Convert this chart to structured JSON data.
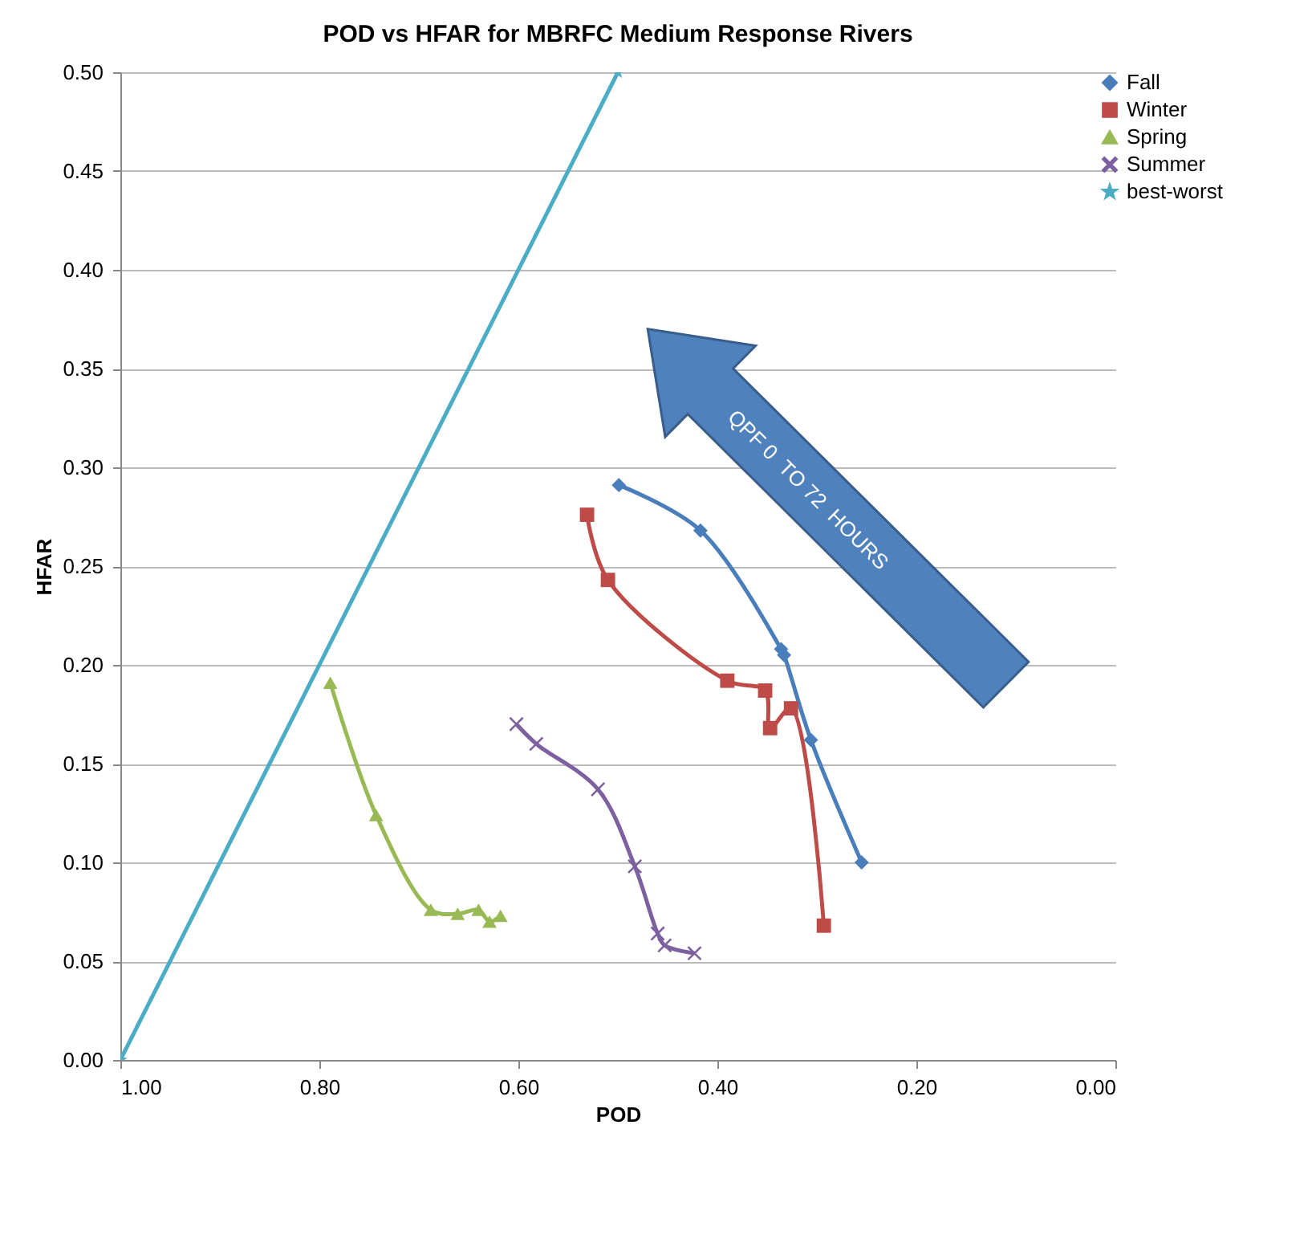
{
  "chart_data": {
    "type": "line",
    "title": "POD vs HFAR for MBRFC Medium Response Rivers",
    "xlabel": "POD",
    "ylabel": "HFAR",
    "xlim": [
      1.0,
      0.0
    ],
    "ylim": [
      0,
      0.5
    ],
    "xticks": [
      {
        "value": 1,
        "label": "1.00"
      },
      {
        "value": 0.8,
        "label": "0.80"
      },
      {
        "value": 0.6,
        "label": "0.60"
      },
      {
        "value": 0.4,
        "label": "0.40"
      },
      {
        "value": 0.2,
        "label": "0.20"
      },
      {
        "value": 0,
        "label": "0.00"
      }
    ],
    "yticks": [
      {
        "value": 0,
        "label": "0.00"
      },
      {
        "value": 0.05,
        "label": "0.05"
      },
      {
        "value": 0.1,
        "label": "0.10"
      },
      {
        "value": 0.15,
        "label": "0.15"
      },
      {
        "value": 0.2,
        "label": "0.20"
      },
      {
        "value": 0.25,
        "label": "0.25"
      },
      {
        "value": 0.3,
        "label": "0.30"
      },
      {
        "value": 0.35,
        "label": "0.35"
      },
      {
        "value": 0.4,
        "label": "0.40"
      },
      {
        "value": 0.45,
        "label": "0.45"
      },
      {
        "value": 0.5,
        "label": "0.50"
      }
    ],
    "grid": "y",
    "legend": "right",
    "annotations": [
      "QPF 0  TO 72  HOURS"
    ],
    "series": [
      {
        "name": "Fall",
        "color": "#4a7ebb",
        "marker": "diamond",
        "x": [
          0.499,
          0.417,
          0.336,
          0.333,
          0.306,
          0.255
        ],
        "values": [
          0.291,
          0.268,
          0.208,
          0.205,
          0.162,
          0.1
        ]
      },
      {
        "name": "Winter",
        "color": "#be4b48",
        "marker": "square",
        "x": [
          0.531,
          0.51,
          0.39,
          0.352,
          0.347,
          0.326,
          0.293
        ],
        "values": [
          0.276,
          0.243,
          0.192,
          0.187,
          0.168,
          0.178,
          0.068
        ]
      },
      {
        "name": "Spring",
        "color": "#98b954",
        "marker": "triangle",
        "x": [
          0.789,
          0.743,
          0.688,
          0.661,
          0.64,
          0.629,
          0.618
        ],
        "values": [
          0.191,
          0.124,
          0.076,
          0.074,
          0.076,
          0.07,
          0.073
        ]
      },
      {
        "name": "Summer",
        "color": "#7d60a0",
        "marker": "cross",
        "x": [
          0.602,
          0.582,
          0.52,
          0.483,
          0.46,
          0.453,
          0.423
        ],
        "values": [
          0.17,
          0.16,
          0.137,
          0.098,
          0.064,
          0.058,
          0.054
        ]
      },
      {
        "name": "best-worst",
        "color": "#4bacc6",
        "marker": "star",
        "x": [
          1.0,
          0.5
        ],
        "values": [
          0,
          0.5
        ]
      }
    ]
  }
}
